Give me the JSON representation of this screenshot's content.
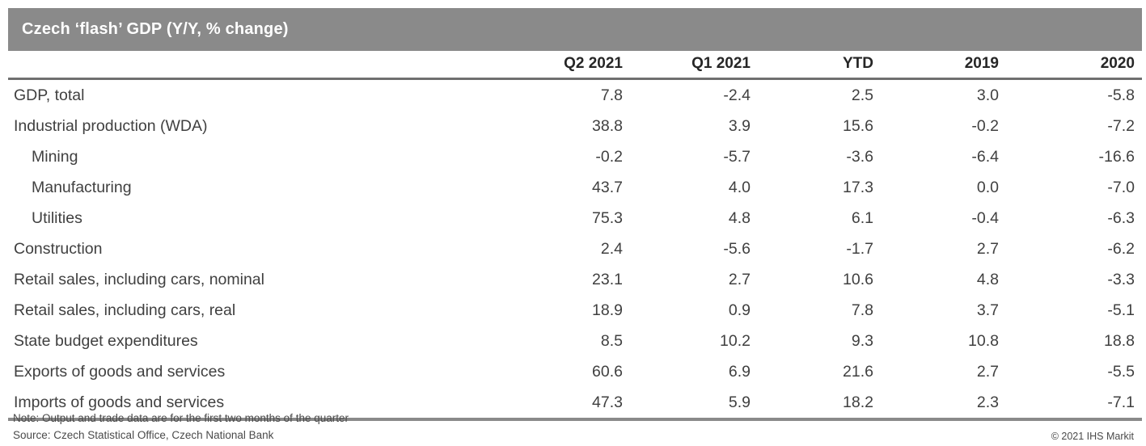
{
  "title": "Czech ‘flash’ GDP (Y/Y, % change)",
  "chart_data": {
    "type": "table",
    "title": "Czech ‘flash’ GDP (Y/Y, % change)",
    "columns": [
      "Q2 2021",
      "Q1 2021",
      "YTD",
      "2019",
      "2020"
    ],
    "rows": [
      {
        "label": "GDP, total",
        "indent": 0,
        "values": [
          7.8,
          -2.4,
          2.5,
          3.0,
          -5.8
        ]
      },
      {
        "label": "Industrial production (WDA)",
        "indent": 0,
        "values": [
          38.8,
          3.9,
          15.6,
          -0.2,
          -7.2
        ]
      },
      {
        "label": "Mining",
        "indent": 1,
        "values": [
          -0.2,
          -5.7,
          -3.6,
          -6.4,
          -16.6
        ]
      },
      {
        "label": "Manufacturing",
        "indent": 1,
        "values": [
          43.7,
          4.0,
          17.3,
          0.0,
          -7.0
        ]
      },
      {
        "label": "Utilities",
        "indent": 1,
        "values": [
          75.3,
          4.8,
          6.1,
          -0.4,
          -6.3
        ]
      },
      {
        "label": "Construction",
        "indent": 0,
        "values": [
          2.4,
          -5.6,
          -1.7,
          2.7,
          -6.2
        ]
      },
      {
        "label": "Retail sales, including cars, nominal",
        "indent": 0,
        "values": [
          23.1,
          2.7,
          10.6,
          4.8,
          -3.3
        ]
      },
      {
        "label": "Retail sales, including cars, real",
        "indent": 0,
        "values": [
          18.9,
          0.9,
          7.8,
          3.7,
          -5.1
        ]
      },
      {
        "label": "State budget expenditures",
        "indent": 0,
        "values": [
          8.5,
          10.2,
          9.3,
          10.8,
          18.8
        ]
      },
      {
        "label": "Exports of goods and services",
        "indent": 0,
        "values": [
          60.6,
          6.9,
          21.6,
          2.7,
          -5.5
        ]
      },
      {
        "label": "Imports of goods and services",
        "indent": 0,
        "values": [
          47.3,
          5.9,
          18.2,
          2.3,
          -7.1
        ]
      }
    ],
    "value_format": "one_decimal",
    "grid": false,
    "legend_position": "none"
  },
  "footer": {
    "note": "Note: Output and trade data are for the first two months of the quarter",
    "source": "Source: Czech Statistical Office, Czech National Bank",
    "copyright": "© 2021 IHS Markit"
  },
  "colors": {
    "title_bar_background": "#8a8a8a",
    "title_text": "#ffffff",
    "header_rule": "#6f6f6f",
    "bottom_rule": "#8a8a8a",
    "body_text": "#404040",
    "header_text": "#262626",
    "footer_text": "#4a4a4a",
    "background": "#ffffff"
  }
}
